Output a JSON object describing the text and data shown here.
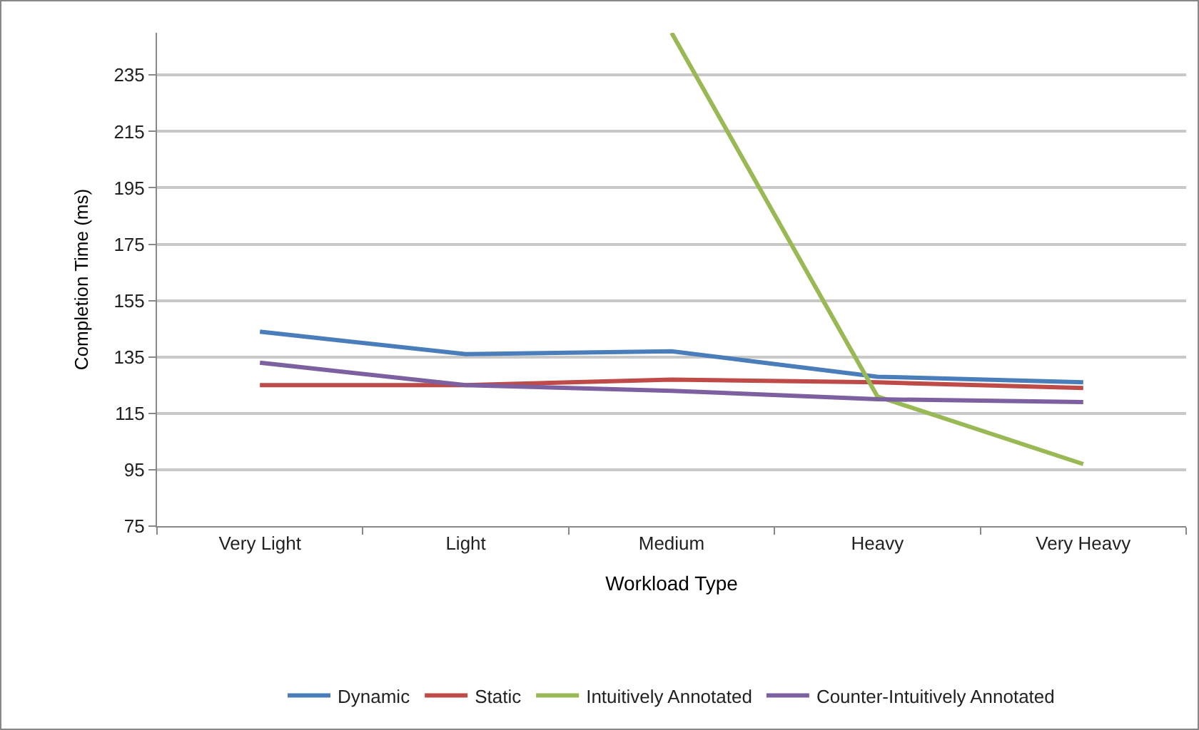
{
  "chart_data": {
    "type": "line",
    "xlabel": "Workload Type",
    "ylabel": "Completion Time (ms)",
    "categories": [
      "Very Light",
      "Light",
      "Medium",
      "Heavy",
      "Very Heavy"
    ],
    "series": [
      {
        "name": "Dynamic",
        "color": "#4a7ebb",
        "values": [
          144,
          136,
          137,
          128,
          126
        ]
      },
      {
        "name": "Static",
        "color": "#be4b48",
        "values": [
          125,
          125,
          127,
          126,
          124
        ]
      },
      {
        "name": "Intuitively Annotated",
        "color": "#98b954",
        "values": [
          null,
          null,
          250,
          121,
          97
        ]
      },
      {
        "name": "Counter-Intuitively Annotated",
        "color": "#7d60a0",
        "values": [
          133,
          125,
          123,
          120,
          119
        ]
      }
    ],
    "ylim": [
      75,
      250
    ],
    "yticks": [
      75,
      95,
      115,
      135,
      155,
      175,
      195,
      215,
      235
    ],
    "grid": "y",
    "legend": "bottom",
    "marker": "none",
    "line_style": "solid"
  }
}
